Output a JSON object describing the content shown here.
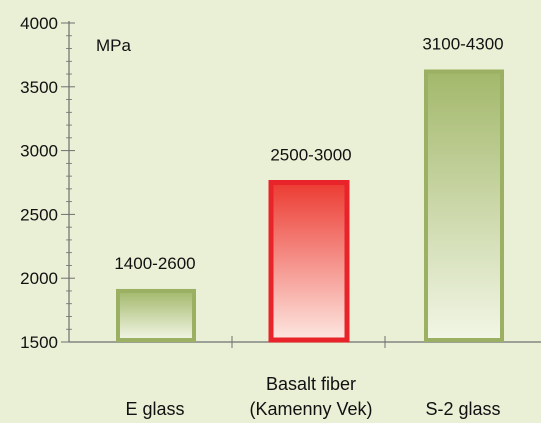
{
  "colors": {
    "background": "#eaf0d6",
    "axis": "#6f6f6f",
    "green_edge": "#9bb063",
    "green_top": "#a3b86b",
    "green_bottom": "#f2f6e6",
    "red_edge": "#e8242a",
    "red_top": "#ec3b32",
    "red_bottom": "#fde7e1"
  },
  "chart_data": {
    "type": "bar",
    "ylabel": "MPa",
    "ylim": [
      1500,
      4000
    ],
    "yticks": [
      1500,
      2000,
      2500,
      3000,
      3500,
      4000
    ],
    "ytick_labels": [
      "1500",
      "2000",
      "2500",
      "3000",
      "3500",
      "4000"
    ],
    "y_minor_step": 100,
    "grid": false,
    "categories": [
      [
        "E glass"
      ],
      [
        "Basalt fiber",
        "(Kamenny Vek)"
      ],
      [
        "S-2 glass"
      ]
    ],
    "values": [
      1900,
      2750,
      3620
    ],
    "data_labels": [
      "1400-2600",
      "2500-3000",
      "3100-4300"
    ],
    "bar_styles": [
      "green",
      "red",
      "green"
    ]
  }
}
